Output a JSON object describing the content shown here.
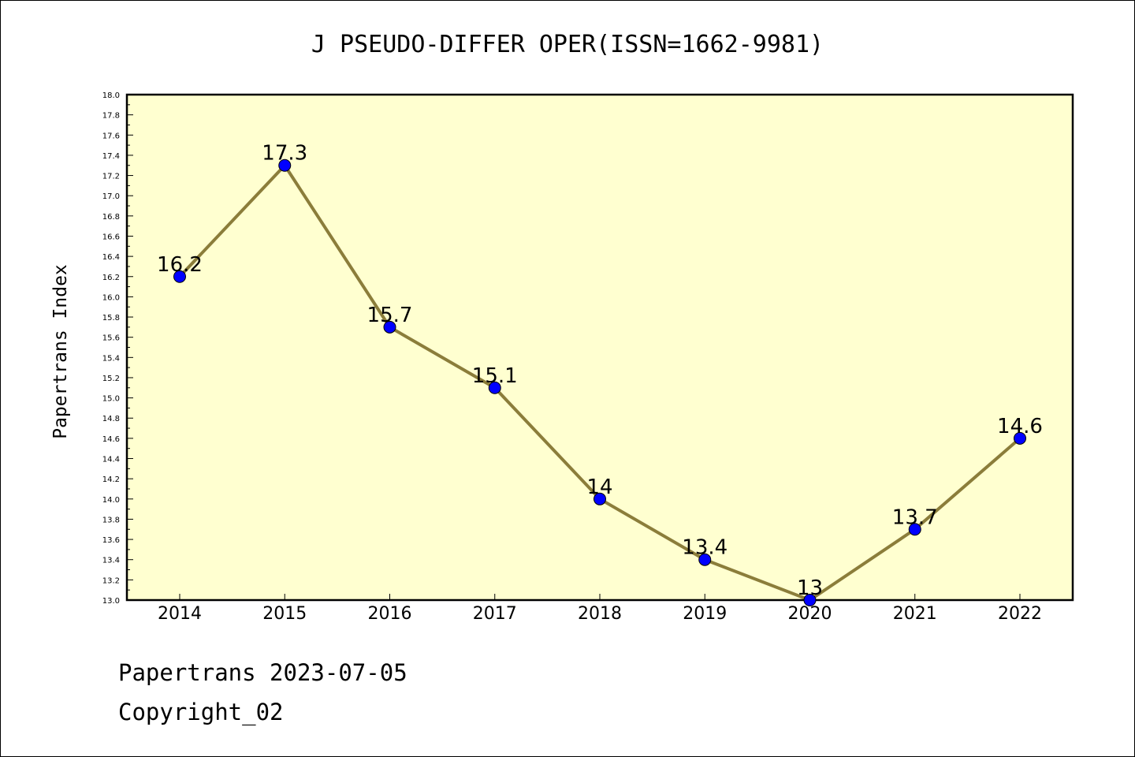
{
  "chart_data": {
    "type": "line",
    "title": "J PSEUDO-DIFFER OPER(ISSN=1662-9981)",
    "xlabel": "",
    "ylabel": "Papertrans Index",
    "categories": [
      "2014",
      "2015",
      "2016",
      "2017",
      "2018",
      "2019",
      "2020",
      "2021",
      "2022"
    ],
    "values": [
      16.2,
      17.3,
      15.7,
      15.1,
      14.0,
      13.4,
      13.0,
      13.7,
      14.6
    ],
    "data_labels": [
      "16.2",
      "17.3",
      "15.7",
      "15.1",
      "14",
      "13.4",
      "13",
      "13.7",
      "14.6"
    ],
    "ylim": [
      13.0,
      18.0
    ],
    "ytick_step": 0.2,
    "grid": false,
    "colors": {
      "plot_bg": "#ffffd0",
      "line": "#8b7d3a",
      "marker": "#0000ff"
    }
  },
  "footer": {
    "line1": "Papertrans 2023-07-05",
    "line2": "Copyright_02"
  }
}
